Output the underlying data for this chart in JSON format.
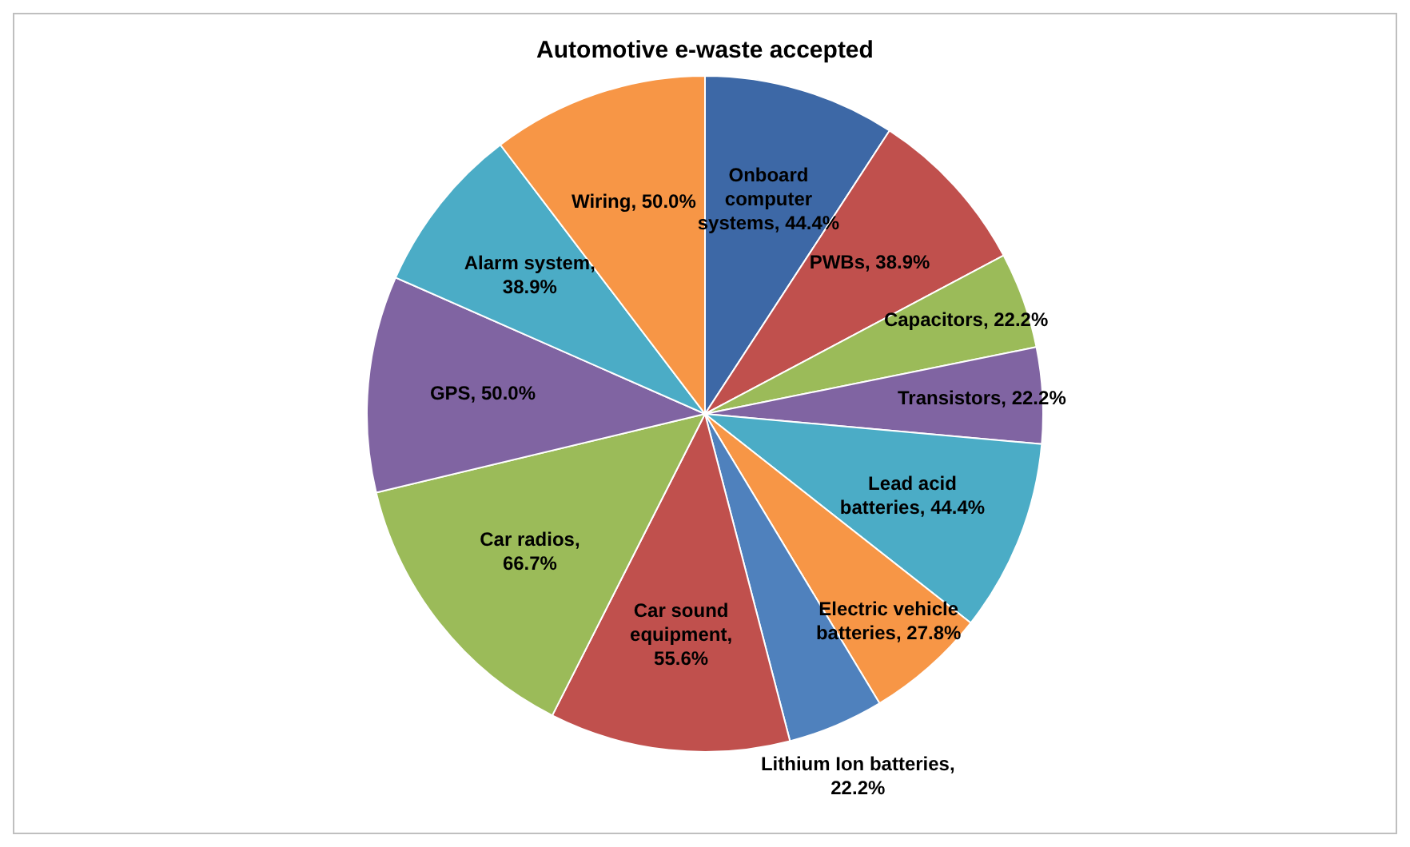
{
  "chart_data": {
    "type": "pie",
    "title": "Automotive e-waste accepted",
    "categories": [
      "Onboard computer systems",
      "PWBs",
      "Capacitors",
      "Transistors",
      "Lead acid batteries",
      "Electric vehicle batteries",
      "Lithium Ion batteries",
      "Car sound equipment",
      "Car radios",
      "GPS",
      "Alarm system",
      "Wiring"
    ],
    "values": [
      44.4,
      38.9,
      22.2,
      22.2,
      44.4,
      27.8,
      22.2,
      55.6,
      66.7,
      50.0,
      38.9,
      50.0
    ],
    "value_labels": [
      ", 44.4%",
      ", 38.9%",
      ", 22.2%",
      ", 22.2%",
      ", 44.4%",
      ", 27.8%",
      ", 22.2%",
      ", 55.6%",
      ", 66.7%",
      ", 50.0%",
      ", 38.9%",
      ", 50.0%"
    ],
    "colors": [
      "#3d68a6",
      "#c0504d",
      "#9bbb59",
      "#8064a2",
      "#4bacc6",
      "#f79646",
      "#4f81bd",
      "#c0504d",
      "#9bbb59",
      "#8064a2",
      "#4bacc6",
      "#f79646"
    ],
    "legend": false
  }
}
